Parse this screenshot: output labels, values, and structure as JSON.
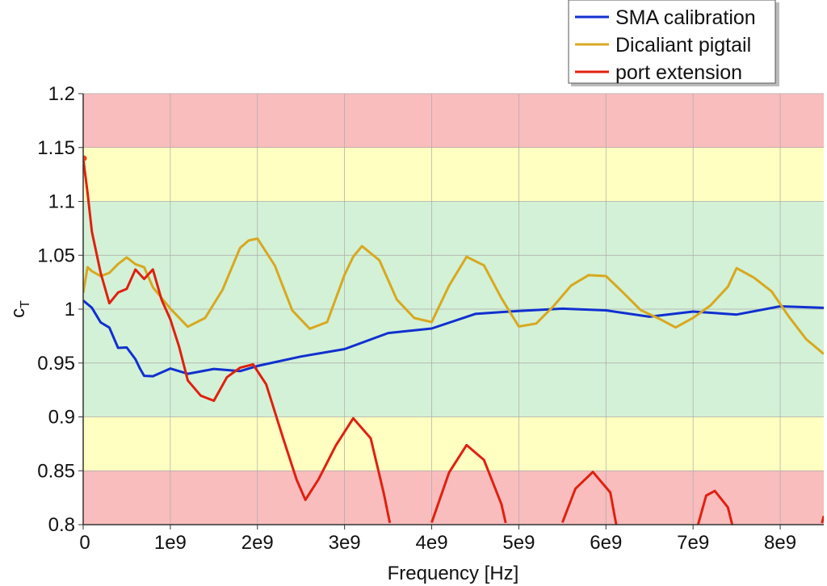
{
  "chart_data": {
    "type": "line",
    "title": "",
    "xlabel": "Frequency [Hz]",
    "ylabel": "c",
    "ylabel_subscript": "T",
    "xlim": [
      0,
      8500000000.0
    ],
    "ylim": [
      0.8,
      1.2
    ],
    "grid": true,
    "legend_position": "top-right",
    "x_ticks": [
      {
        "value": 0,
        "label": "0"
      },
      {
        "value": 1000000000.0,
        "label": "1e9"
      },
      {
        "value": 2000000000.0,
        "label": "2e9"
      },
      {
        "value": 3000000000.0,
        "label": "3e9"
      },
      {
        "value": 4000000000.0,
        "label": "4e9"
      },
      {
        "value": 5000000000.0,
        "label": "5e9"
      },
      {
        "value": 6000000000.0,
        "label": "6e9"
      },
      {
        "value": 7000000000.0,
        "label": "7e9"
      },
      {
        "value": 8000000000.0,
        "label": "8e9"
      }
    ],
    "y_ticks": [
      {
        "value": 0.8,
        "label": "0.8"
      },
      {
        "value": 0.85,
        "label": "0.85"
      },
      {
        "value": 0.9,
        "label": "0.9"
      },
      {
        "value": 0.95,
        "label": "0.95"
      },
      {
        "value": 1.0,
        "label": "1"
      },
      {
        "value": 1.05,
        "label": "1.05"
      },
      {
        "value": 1.1,
        "label": "1.1"
      },
      {
        "value": 1.15,
        "label": "1.15"
      },
      {
        "value": 1.2,
        "label": "1.2"
      }
    ],
    "bands": [
      {
        "from": 1.15,
        "to": 1.2,
        "color": "#f9bdbd"
      },
      {
        "from": 1.1,
        "to": 1.15,
        "color": "#ffffc2"
      },
      {
        "from": 0.9,
        "to": 1.1,
        "color": "#d3f1d6"
      },
      {
        "from": 0.85,
        "to": 0.9,
        "color": "#ffffc2"
      },
      {
        "from": 0.8,
        "to": 0.85,
        "color": "#f9bdbd"
      }
    ],
    "series": [
      {
        "name": "SMA calibration",
        "color": "#1030d0",
        "x_ghz": [
          0,
          0.1,
          0.2,
          0.3,
          0.4,
          0.5,
          0.6,
          0.65,
          0.7,
          0.8,
          1.0,
          1.2,
          1.5,
          1.8,
          2.0,
          2.5,
          3.0,
          3.5,
          4.0,
          4.5,
          5.0,
          5.5,
          6.0,
          6.5,
          7.0,
          7.5,
          8.0,
          8.5
        ],
        "y": [
          1.008,
          1.0,
          0.99,
          0.98,
          0.967,
          0.962,
          0.955,
          0.945,
          0.937,
          0.94,
          0.942,
          0.943,
          0.942,
          0.944,
          0.947,
          0.955,
          0.965,
          0.975,
          0.985,
          0.993,
          1.0,
          1.0,
          0.998,
          0.995,
          0.995,
          0.998,
          1.0,
          1.003
        ]
      },
      {
        "name": "Dicaliant pigtail",
        "color": "#d8a820",
        "x_ghz": [
          0,
          0.05,
          0.1,
          0.2,
          0.3,
          0.4,
          0.5,
          0.6,
          0.7,
          0.8,
          1.0,
          1.2,
          1.4,
          1.6,
          1.8,
          1.9,
          2.0,
          2.2,
          2.4,
          2.6,
          2.8,
          3.0,
          3.1,
          3.2,
          3.4,
          3.6,
          3.8,
          4.0,
          4.2,
          4.4,
          4.6,
          4.8,
          5.0,
          5.2,
          5.4,
          5.6,
          5.8,
          6.0,
          6.2,
          6.4,
          6.6,
          6.8,
          7.0,
          7.2,
          7.4,
          7.5,
          7.7,
          7.9,
          8.1,
          8.3,
          8.5
        ],
        "y": [
          1.015,
          1.04,
          1.035,
          1.03,
          1.035,
          1.04,
          1.05,
          1.04,
          1.04,
          1.02,
          1.0,
          0.985,
          0.99,
          1.02,
          1.055,
          1.065,
          1.065,
          1.04,
          1.0,
          0.98,
          0.99,
          1.03,
          1.05,
          1.058,
          1.045,
          1.01,
          0.99,
          0.99,
          1.02,
          1.05,
          1.04,
          1.01,
          0.985,
          0.985,
          1.005,
          1.02,
          1.033,
          1.03,
          1.015,
          1.0,
          0.99,
          0.985,
          0.99,
          1.005,
          1.02,
          1.038,
          1.03,
          1.015,
          0.995,
          0.97,
          0.96
        ]
      },
      {
        "name": "port extension",
        "color": "#e02010",
        "x_ghz": [
          0,
          0.05,
          0.1,
          0.2,
          0.3,
          0.4,
          0.5,
          0.6,
          0.7,
          0.8,
          0.9,
          1.0,
          1.1,
          1.2,
          1.35,
          1.5,
          1.65,
          1.8,
          1.95,
          2.1,
          2.3,
          2.45,
          2.55,
          2.7,
          2.9,
          3.1,
          3.3,
          3.45,
          3.52,
          null,
          4.0,
          4.2,
          4.4,
          4.6,
          4.8,
          4.85,
          null,
          5.5,
          5.65,
          5.85,
          6.05,
          6.12,
          null,
          7.05,
          7.15,
          7.25,
          7.4,
          7.45,
          null,
          8.48,
          8.5
        ],
        "y": [
          1.14,
          1.11,
          1.07,
          1.035,
          1.005,
          1.015,
          1.02,
          1.035,
          1.03,
          1.035,
          1.01,
          0.99,
          0.965,
          0.935,
          0.918,
          0.917,
          0.935,
          0.947,
          0.948,
          0.93,
          0.88,
          0.84,
          0.825,
          0.84,
          0.875,
          0.898,
          0.88,
          0.83,
          0.8,
          null,
          0.8,
          0.85,
          0.873,
          0.86,
          0.82,
          0.8,
          null,
          0.8,
          0.835,
          0.848,
          0.83,
          0.8,
          null,
          0.8,
          0.825,
          0.833,
          0.815,
          0.8,
          null,
          0.8,
          0.81
        ]
      }
    ]
  }
}
